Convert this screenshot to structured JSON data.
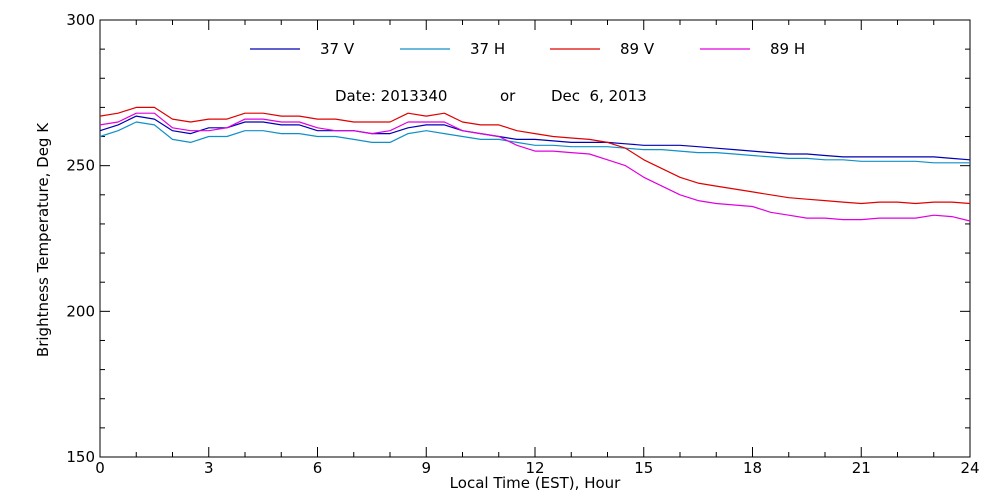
{
  "chart_data": {
    "type": "line",
    "title": "",
    "xlabel": "Local Time (EST), Hour",
    "ylabel": "Brightness Temperature, Deg K",
    "xlim": [
      0,
      24
    ],
    "ylim": [
      150,
      300
    ],
    "xticks": [
      0,
      3,
      6,
      9,
      12,
      15,
      18,
      21,
      24
    ],
    "yticks": [
      150,
      200,
      250,
      300
    ],
    "annotation": {
      "date_label": "Date: 2013340",
      "or_label": "or",
      "date_text": "Dec  6, 2013"
    },
    "legend_position": "top",
    "grid": false,
    "x": [
      0,
      0.5,
      1,
      1.5,
      2,
      2.5,
      3,
      3.5,
      4,
      4.5,
      5,
      5.5,
      6,
      6.5,
      7,
      7.5,
      8,
      8.5,
      9,
      9.5,
      10,
      10.5,
      11,
      11.5,
      12,
      12.5,
      13,
      13.5,
      14,
      14.5,
      15,
      15.5,
      16,
      16.5,
      17,
      17.5,
      18,
      18.5,
      19,
      19.5,
      20,
      20.5,
      21,
      21.5,
      22,
      22.5,
      23,
      23.5,
      24
    ],
    "series": [
      {
        "name": "37 V",
        "color": "#0000b4",
        "values": [
          262,
          264,
          267,
          266,
          262,
          261,
          263,
          263,
          265,
          265,
          264,
          264,
          262,
          262,
          262,
          261,
          261,
          263,
          264,
          264,
          262,
          261,
          260,
          259,
          259,
          258.5,
          258,
          258,
          258,
          257.5,
          257,
          257,
          257,
          256.5,
          256,
          255.5,
          255,
          254.5,
          254,
          254,
          253.5,
          253,
          253,
          253,
          253,
          253,
          253,
          252.5,
          252
        ]
      },
      {
        "name": "37 H",
        "color": "#1090c8",
        "values": [
          260,
          262,
          265,
          264,
          259,
          258,
          260,
          260,
          262,
          262,
          261,
          261,
          260,
          260,
          259,
          258,
          258,
          261,
          262,
          261,
          260,
          259,
          259,
          258,
          257,
          257,
          256.5,
          256.5,
          256.5,
          256,
          255.5,
          255.5,
          255,
          254.5,
          254.5,
          254,
          253.5,
          253,
          252.5,
          252.5,
          252,
          252,
          251.5,
          251.5,
          251.5,
          251.5,
          251,
          251,
          251
        ]
      },
      {
        "name": "89 V",
        "color": "#e00000",
        "values": [
          267,
          268,
          270,
          270,
          266,
          265,
          266,
          266,
          268,
          268,
          267,
          267,
          266,
          266,
          265,
          265,
          265,
          268,
          267,
          268,
          265,
          264,
          264,
          262,
          261,
          260,
          259.5,
          259,
          258,
          256,
          252,
          249,
          246,
          244,
          243,
          242,
          241,
          240,
          239,
          238.5,
          238,
          237.5,
          237,
          237.5,
          237.5,
          237,
          237.5,
          237.5,
          237
        ]
      },
      {
        "name": "89 H",
        "color": "#e000e0",
        "values": [
          264,
          265,
          268,
          268,
          263,
          262,
          262,
          263,
          266,
          266,
          265,
          265,
          263,
          262,
          262,
          261,
          262,
          265,
          265,
          265,
          262,
          261,
          260,
          257,
          255,
          255,
          254.5,
          254,
          252,
          250,
          246,
          243,
          240,
          238,
          237,
          236.5,
          236,
          234,
          233,
          232,
          232,
          231.5,
          231.5,
          232,
          232,
          232,
          233,
          232.5,
          231
        ]
      }
    ]
  }
}
